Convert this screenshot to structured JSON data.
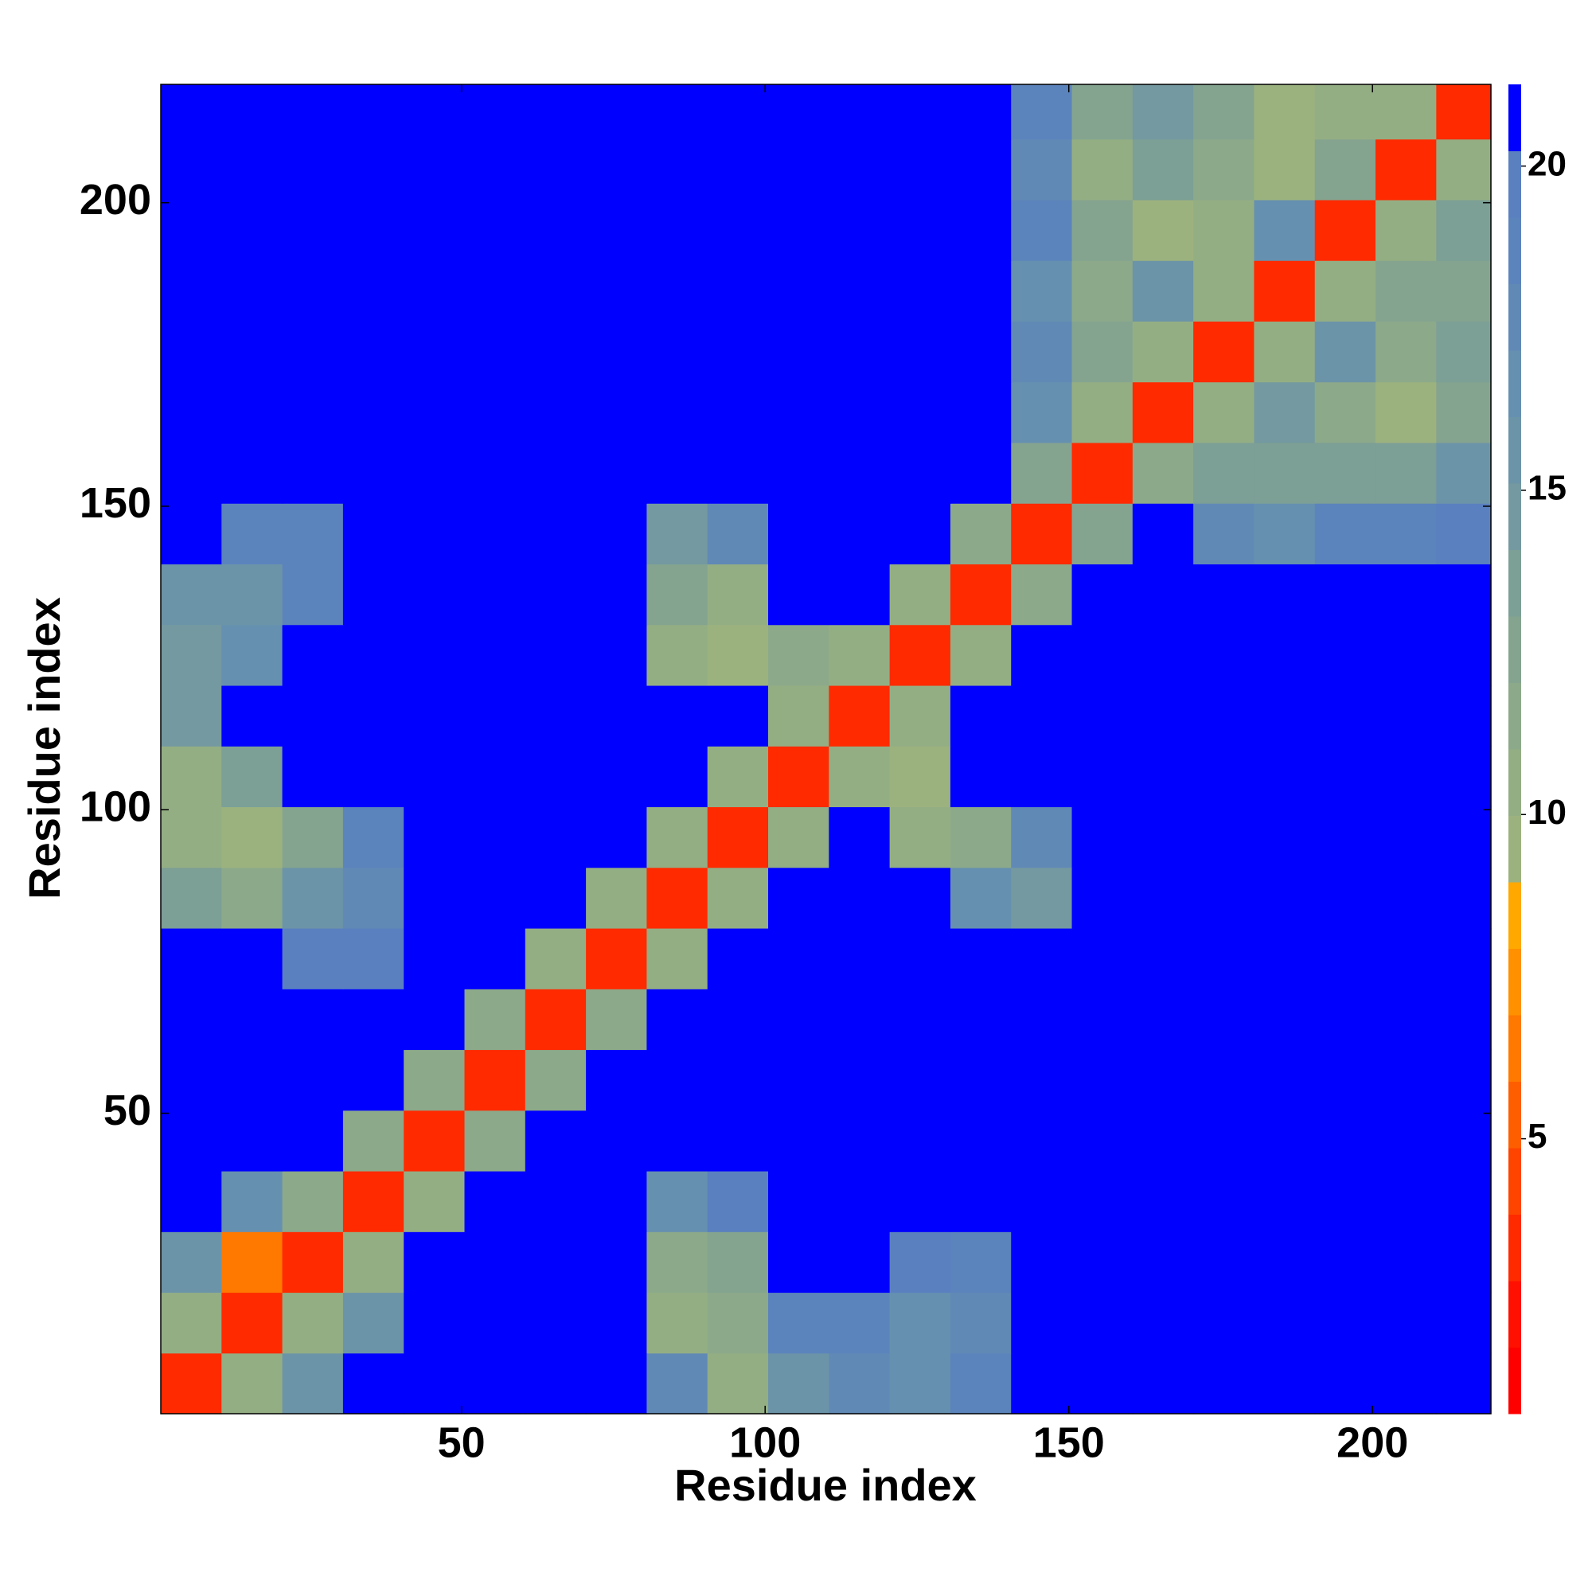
{
  "chart_data": {
    "type": "heatmap",
    "xlabel": "Residue index",
    "ylabel": "Residue index",
    "xlim": [
      0.5,
      219.5
    ],
    "ylim": [
      0.5,
      219.5
    ],
    "xticks": [
      50,
      100,
      150,
      200
    ],
    "yticks": [
      50,
      100,
      150,
      200
    ],
    "clim": [
      0.76,
      21.26
    ],
    "cticks": [
      5,
      10,
      15,
      20
    ],
    "colors": [
      "#ff0000",
      "#ff1000",
      "#ff2a00",
      "#ff4400",
      "#ff5e00",
      "#ff7800",
      "#ff9000",
      "#ffa800",
      "#9cb27e",
      "#94ae84",
      "#8ca98a",
      "#84a490",
      "#7c9f96",
      "#7499a0",
      "#6c94a8",
      "#6690b0",
      "#6189b6",
      "#5c84bc",
      "#5a80c0",
      "#0000ff"
    ],
    "xbins": [
      0.5,
      10.5,
      20.5,
      30.5,
      40.5,
      50.5,
      60.5,
      70.5,
      80.5,
      90.5,
      100.5,
      110.5,
      120.5,
      130.5,
      140.5,
      150.5,
      160.5,
      170.5,
      180.5,
      190.5,
      200.5,
      210.5,
      219.5
    ],
    "ybins": [
      0.5,
      10.5,
      20.5,
      30.5,
      40.5,
      50.5,
      60.5,
      70.5,
      80.5,
      90.5,
      100.5,
      110.5,
      120.5,
      130.5,
      140.5,
      150.5,
      160.5,
      170.5,
      180.5,
      190.5,
      200.5,
      210.5,
      219.5
    ],
    "z": [
      [
        3,
        11,
        16,
        21,
        21,
        21,
        21,
        21,
        18,
        10,
        16,
        18,
        17,
        19,
        21,
        21,
        21,
        21,
        21,
        21,
        21,
        21
      ],
      [
        11,
        3,
        11,
        16,
        21,
        21,
        21,
        21,
        10,
        12,
        19,
        19,
        17,
        18,
        21,
        21,
        21,
        21,
        21,
        21,
        21,
        21
      ],
      [
        16,
        6,
        3,
        11,
        21,
        21,
        21,
        21,
        12,
        13,
        21,
        21,
        20,
        19,
        21,
        21,
        21,
        21,
        21,
        21,
        21,
        21
      ],
      [
        21,
        17,
        12,
        3,
        11,
        21,
        21,
        21,
        17,
        20,
        21,
        21,
        21,
        21,
        21,
        21,
        21,
        21,
        21,
        21,
        21,
        21
      ],
      [
        21,
        21,
        21,
        12,
        3,
        12,
        21,
        21,
        21,
        21,
        21,
        21,
        21,
        21,
        21,
        21,
        21,
        21,
        21,
        21,
        21,
        21
      ],
      [
        21,
        21,
        21,
        21,
        12,
        3,
        12,
        21,
        21,
        21,
        21,
        21,
        21,
        21,
        21,
        21,
        21,
        21,
        21,
        21,
        21,
        21
      ],
      [
        21,
        21,
        21,
        21,
        21,
        12,
        3,
        12,
        21,
        21,
        21,
        21,
        21,
        21,
        21,
        21,
        21,
        21,
        21,
        21,
        21,
        21
      ],
      [
        21,
        21,
        20,
        20,
        21,
        21,
        11,
        3,
        11,
        21,
        21,
        21,
        21,
        21,
        21,
        21,
        21,
        21,
        21,
        21,
        21,
        21
      ],
      [
        14,
        12,
        16,
        18,
        21,
        21,
        21,
        11,
        3,
        11,
        21,
        21,
        21,
        17,
        15,
        21,
        21,
        21,
        21,
        21,
        21,
        21
      ],
      [
        10,
        9,
        13,
        19,
        21,
        21,
        21,
        21,
        11,
        3,
        11,
        21,
        11,
        12,
        18,
        21,
        21,
        21,
        21,
        21,
        21,
        21
      ],
      [
        11,
        14,
        21,
        21,
        21,
        21,
        21,
        21,
        21,
        11,
        3,
        10,
        9,
        21,
        21,
        21,
        21,
        21,
        21,
        21,
        21,
        21
      ],
      [
        15,
        21,
        21,
        21,
        21,
        21,
        21,
        21,
        21,
        21,
        10,
        3,
        11,
        21,
        21,
        21,
        21,
        21,
        21,
        21,
        21,
        21
      ],
      [
        15,
        17,
        21,
        21,
        21,
        21,
        21,
        21,
        10,
        9,
        12,
        11,
        3,
        11,
        21,
        21,
        21,
        21,
        21,
        21,
        21,
        21
      ],
      [
        16,
        16,
        19,
        21,
        21,
        21,
        21,
        21,
        13,
        11,
        21,
        21,
        11,
        3,
        12,
        21,
        21,
        21,
        21,
        21,
        21,
        21
      ],
      [
        21,
        19,
        19,
        21,
        21,
        21,
        21,
        21,
        15,
        18,
        21,
        21,
        21,
        12,
        3,
        13,
        21,
        18,
        17,
        19,
        19,
        20
      ],
      [
        21,
        21,
        21,
        21,
        21,
        21,
        21,
        21,
        21,
        21,
        21,
        21,
        21,
        21,
        13,
        3,
        12,
        14,
        14,
        14,
        14,
        16
      ],
      [
        21,
        21,
        21,
        21,
        21,
        21,
        21,
        21,
        21,
        21,
        21,
        21,
        21,
        21,
        17,
        11,
        3,
        10,
        15,
        12,
        9,
        13
      ],
      [
        21,
        21,
        21,
        21,
        21,
        21,
        21,
        21,
        21,
        21,
        21,
        21,
        21,
        21,
        18,
        13,
        10,
        3,
        11,
        16,
        12,
        14
      ],
      [
        21,
        21,
        21,
        21,
        21,
        21,
        21,
        21,
        21,
        21,
        21,
        21,
        21,
        21,
        17,
        12,
        16,
        11,
        3,
        11,
        13,
        13
      ],
      [
        21,
        21,
        21,
        21,
        21,
        21,
        21,
        21,
        21,
        21,
        21,
        21,
        21,
        21,
        19,
        13,
        9,
        10,
        17,
        3,
        10,
        14
      ],
      [
        21,
        21,
        21,
        21,
        21,
        21,
        21,
        21,
        21,
        21,
        21,
        21,
        21,
        21,
        18,
        11,
        14,
        12,
        9,
        13,
        3,
        11
      ],
      [
        21,
        21,
        21,
        21,
        21,
        21,
        21,
        21,
        21,
        21,
        21,
        21,
        21,
        21,
        19,
        13,
        15,
        13,
        9,
        10,
        11,
        3
      ]
    ]
  }
}
